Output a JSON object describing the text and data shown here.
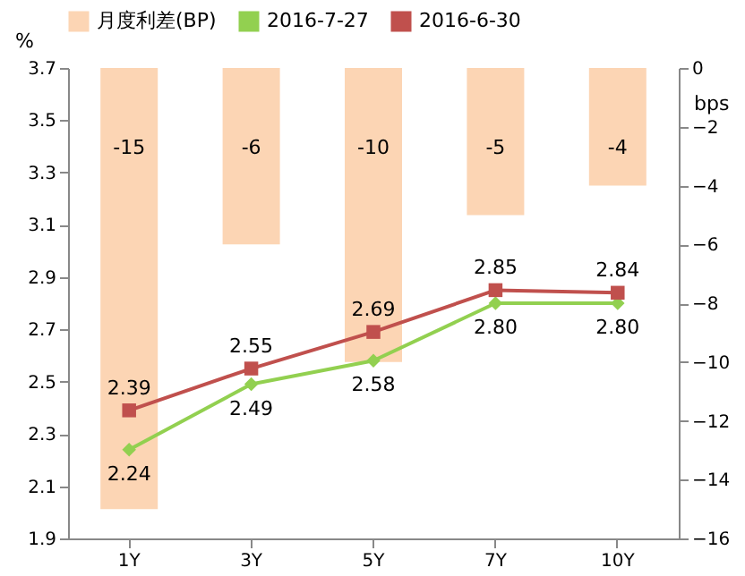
{
  "chart_data": {
    "type": "line",
    "categories": [
      "1Y",
      "3Y",
      "5Y",
      "7Y",
      "10Y"
    ],
    "series": [
      {
        "name": "月度利差(BP)",
        "type": "bar",
        "axis": "y2",
        "color": "#fcd5b4",
        "values": [
          -15,
          -6,
          -10,
          -5,
          -4
        ]
      },
      {
        "name": "2016-7-27",
        "color": "#92d050",
        "marker": "diamond",
        "values": [
          2.24,
          2.49,
          2.58,
          2.8,
          2.8
        ],
        "value_labels": [
          "2.24",
          "2.49",
          "2.58",
          "2.80",
          "2.80"
        ]
      },
      {
        "name": "2016-6-30",
        "color": "#c0504d",
        "marker": "square",
        "values": [
          2.39,
          2.55,
          2.69,
          2.85,
          2.84
        ]
      }
    ],
    "ylabel": "%",
    "y2label": "bps",
    "ylim": [
      1.9,
      3.7
    ],
    "yticks": [
      1.9,
      2.1,
      2.3,
      2.5,
      2.7,
      2.9,
      3.1,
      3.3,
      3.5,
      3.7
    ],
    "y2lim": [
      -16,
      0
    ],
    "y2ticks": [
      -16,
      -14,
      -12,
      -10,
      -8,
      -6,
      -4,
      -2,
      0
    ],
    "data_labels": true,
    "legend": "top",
    "grid": false
  }
}
